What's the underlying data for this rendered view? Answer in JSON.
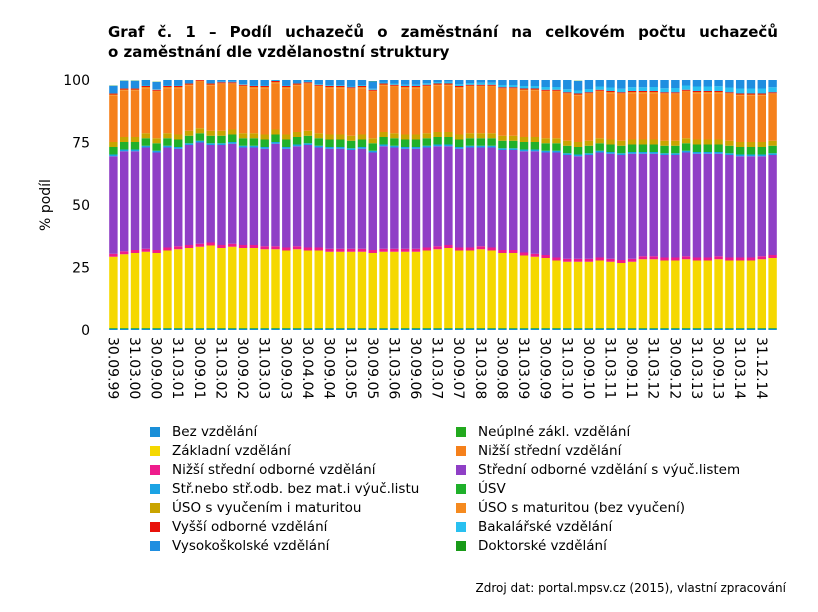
{
  "title_line1": "Graf č. 1 – Podíl uchazečů o zaměstnání na celkovém počtu uchazečů",
  "title_line2": "o zaměstnání dle vzdělanostní struktury",
  "source": "Zdroj dat: portal.mpsv.cz (2015), vlastní zpracování",
  "chart_data": {
    "type": "bar",
    "stacked": true,
    "ylabel": "% podíl",
    "ylim": [
      0,
      100
    ],
    "yticks": [
      0,
      25,
      50,
      75,
      100
    ],
    "x_tick_labels": [
      "30.09.99",
      "31.03.00",
      "30.09.00",
      "31.03.01",
      "30.09.01",
      "31.03.02",
      "30.09.02",
      "31.03.03",
      "30.09.03",
      "30.04.04",
      "30.09.04",
      "31.03.05",
      "30.09.05",
      "31.03.06",
      "30.09.06",
      "31.03.07",
      "30.09.07",
      "31.03.08",
      "30.09.08",
      "31.03.09",
      "30.09.09",
      "31.03.10",
      "30.09.10",
      "31.03.11",
      "30.09.11",
      "31.03.12",
      "30.09.12",
      "31.03.13",
      "30.09.13",
      "31.03.14",
      "31.12.14"
    ],
    "bar_count": 62,
    "series": [
      {
        "name": "Bez vzdělání",
        "color": "#1a8fd8",
        "values": [
          0.5,
          0.5,
          0.5,
          0.5,
          0.5,
          0.5,
          0.5,
          0.5,
          0.5,
          0.5,
          0.5,
          0.5,
          0.5,
          0.5,
          0.5,
          0.5,
          0.5,
          0.5,
          0.5,
          0.5,
          0.5,
          0.5,
          0.5,
          0.5,
          0.5,
          0.5,
          0.5,
          0.5,
          0.5,
          0.5,
          0.5,
          0.5,
          0.5,
          0.5,
          0.5,
          0.5,
          0.5,
          0.5,
          0.5,
          0.5,
          0.5,
          0.5,
          0.5,
          0.5,
          0.5,
          0.5,
          0.5,
          0.5,
          0.5,
          0.5,
          0.5,
          0.5,
          0.5,
          0.5,
          0.5,
          0.5,
          0.5,
          0.5,
          0.5,
          0.5,
          0.5,
          0.5
        ]
      },
      {
        "name": "Neúplné zákl. vzdělání",
        "color": "#22a91e",
        "values": [
          0.3,
          0.3,
          0.3,
          0.3,
          0.3,
          0.3,
          0.3,
          0.3,
          0.3,
          0.3,
          0.3,
          0.3,
          0.3,
          0.3,
          0.3,
          0.3,
          0.3,
          0.3,
          0.3,
          0.3,
          0.3,
          0.3,
          0.3,
          0.3,
          0.3,
          0.3,
          0.3,
          0.3,
          0.3,
          0.3,
          0.3,
          0.3,
          0.3,
          0.3,
          0.3,
          0.3,
          0.3,
          0.3,
          0.3,
          0.3,
          0.3,
          0.3,
          0.3,
          0.3,
          0.3,
          0.3,
          0.3,
          0.3,
          0.3,
          0.3,
          0.3,
          0.3,
          0.3,
          0.3,
          0.3,
          0.3,
          0.3,
          0.3,
          0.3,
          0.3,
          0.3,
          0.3
        ]
      },
      {
        "name": "Základní vzdělání",
        "color": "#f5d800",
        "values": [
          28.5,
          29.5,
          30.0,
          30.5,
          30.0,
          31.0,
          31.5,
          32.0,
          32.5,
          33.0,
          32.0,
          32.5,
          32.0,
          32.0,
          31.5,
          31.5,
          31.0,
          31.5,
          31.0,
          31.0,
          30.5,
          30.5,
          30.5,
          30.5,
          30.0,
          30.5,
          30.5,
          30.5,
          30.5,
          31.0,
          31.5,
          32.0,
          31.0,
          31.0,
          31.5,
          31.0,
          30.0,
          30.0,
          29.0,
          28.5,
          28.0,
          27.0,
          26.5,
          26.5,
          26.5,
          27.0,
          26.5,
          26.0,
          26.5,
          27.5,
          27.5,
          27.0,
          27.0,
          27.5,
          27.0,
          27.0,
          27.5,
          27.0,
          27.0,
          27.0,
          27.5,
          28.0
        ]
      },
      {
        "name": "Nižší střední vzdělání",
        "color": "#f5801b",
        "values": [
          18.5,
          18.5,
          18.5,
          18.0,
          18.5,
          18.0,
          18.5,
          18.0,
          18.5,
          18.0,
          18.5,
          18.0,
          18.5,
          18.0,
          18.5,
          18.5,
          18.5,
          18.5,
          18.5,
          18.5,
          18.5,
          18.5,
          18.5,
          18.5,
          18.5,
          18.5,
          18.5,
          18.5,
          18.5,
          18.5,
          18.5,
          18.5,
          18.5,
          18.5,
          18.5,
          18.5,
          18.5,
          18.5,
          18.5,
          18.5,
          18.5,
          18.5,
          18.5,
          18.5,
          18.5,
          18.5,
          18.5,
          18.5,
          18.5,
          18.5,
          18.5,
          18.5,
          18.5,
          18.5,
          18.5,
          18.5,
          18.5,
          18.5,
          18.5,
          18.5,
          18.5,
          18.5
        ]
      },
      {
        "name": "Nižší střední odborné vzdělání",
        "color": "#ee1c8c",
        "values": [
          1.2,
          1.2,
          1.2,
          1.2,
          1.2,
          1.2,
          1.2,
          1.2,
          1.2,
          1.2,
          1.2,
          1.2,
          1.2,
          1.2,
          1.2,
          1.2,
          1.2,
          1.2,
          1.2,
          1.2,
          1.2,
          1.2,
          1.2,
          1.2,
          1.2,
          1.2,
          1.2,
          1.2,
          1.2,
          1.2,
          1.2,
          1.2,
          1.2,
          1.2,
          1.2,
          1.2,
          1.2,
          1.2,
          1.2,
          1.2,
          1.2,
          1.2,
          1.2,
          1.2,
          1.2,
          1.2,
          1.2,
          1.2,
          1.2,
          1.2,
          1.2,
          1.2,
          1.2,
          1.2,
          1.2,
          1.2,
          1.2,
          1.2,
          1.2,
          1.2,
          1.2,
          1.2
        ]
      },
      {
        "name": "Střední odborné vzdělání s výuč.listem",
        "color": "#8f3fc6",
        "values": [
          39.0,
          40.0,
          39.5,
          40.5,
          39.0,
          40.0,
          39.0,
          40.0,
          40.5,
          39.0,
          40.0,
          40.0,
          39.0,
          39.0,
          39.0,
          41.0,
          39.5,
          40.0,
          41.0,
          40.0,
          40.0,
          40.0,
          39.5,
          40.0,
          39.0,
          41.0,
          40.5,
          40.0,
          40.0,
          40.0,
          40.0,
          39.5,
          39.5,
          40.0,
          39.5,
          40.0,
          40.0,
          40.0,
          40.5,
          41.0,
          41.0,
          42.0,
          41.5,
          41.0,
          41.5,
          42.0,
          42.0,
          42.0,
          42.0,
          41.0,
          41.0,
          41.0,
          41.0,
          41.5,
          41.5,
          41.5,
          41.0,
          41.0,
          40.5,
          40.5,
          40.0,
          40.0
        ]
      },
      {
        "name": "Stř.nebo stř.odb. bez mat.i výuč.listu",
        "color": "#1ba3e4",
        "values": [
          0.7,
          0.7,
          0.7,
          0.7,
          0.7,
          0.7,
          0.7,
          0.7,
          0.7,
          0.7,
          0.7,
          0.7,
          0.7,
          0.7,
          0.7,
          0.7,
          0.7,
          0.7,
          0.7,
          0.7,
          0.7,
          0.7,
          0.7,
          0.7,
          0.7,
          0.7,
          0.7,
          0.7,
          0.7,
          0.7,
          0.7,
          0.7,
          0.7,
          0.7,
          0.7,
          0.7,
          0.7,
          0.7,
          0.7,
          0.7,
          0.7,
          0.7,
          0.7,
          0.7,
          0.7,
          0.7,
          0.7,
          0.7,
          0.7,
          0.7,
          0.7,
          0.7,
          0.7,
          0.7,
          0.7,
          0.7,
          0.7,
          0.7,
          0.7,
          0.7,
          0.7,
          0.7
        ]
      },
      {
        "name": "ÚSV",
        "color": "#1fb02a",
        "values": [
          3.0,
          3.0,
          3.0,
          3.0,
          3.0,
          3.0,
          3.0,
          3.0,
          3.0,
          3.0,
          3.0,
          3.0,
          3.0,
          3.0,
          3.0,
          3.0,
          3.0,
          3.0,
          3.0,
          3.0,
          3.0,
          3.0,
          3.0,
          3.0,
          3.0,
          3.0,
          3.0,
          3.0,
          3.0,
          3.0,
          3.0,
          3.0,
          3.0,
          3.0,
          3.0,
          3.0,
          3.0,
          3.0,
          3.0,
          3.0,
          3.0,
          3.0,
          3.0,
          3.0,
          3.0,
          3.0,
          3.0,
          3.0,
          3.0,
          3.0,
          3.0,
          3.0,
          3.0,
          3.0,
          3.0,
          3.0,
          3.0,
          3.0,
          3.0,
          3.0,
          3.0,
          3.0
        ]
      },
      {
        "name": "ÚSO s vyučením i maturitou",
        "color": "#c9a400",
        "values": [
          2.0,
          2.0,
          2.0,
          2.0,
          2.0,
          2.0,
          2.0,
          2.0,
          2.0,
          2.0,
          2.0,
          2.0,
          2.0,
          2.0,
          2.0,
          2.0,
          2.0,
          2.0,
          2.0,
          2.0,
          2.0,
          2.0,
          2.0,
          2.0,
          2.0,
          2.0,
          2.0,
          2.0,
          2.0,
          2.0,
          2.0,
          2.0,
          2.0,
          2.0,
          2.0,
          2.0,
          2.0,
          2.0,
          2.0,
          2.0,
          2.0,
          2.0,
          2.0,
          2.0,
          2.0,
          2.0,
          2.0,
          2.0,
          2.0,
          2.0,
          2.0,
          2.0,
          2.0,
          2.0,
          2.0,
          2.0,
          2.0,
          2.0,
          2.0,
          2.0,
          2.0,
          2.0
        ]
      },
      {
        "name": "ÚSO s maturitou (bez vyučení)",
        "color": "#f58a1f",
        "values": [
          0.5,
          0.5,
          0.5,
          0.5,
          0.5,
          0.5,
          0.5,
          0.5,
          0.5,
          0.5,
          0.5,
          0.5,
          0.5,
          0.5,
          0.5,
          0.5,
          0.5,
          0.5,
          0.5,
          0.5,
          0.5,
          0.5,
          0.5,
          0.5,
          0.5,
          0.5,
          0.5,
          0.5,
          0.5,
          0.5,
          0.5,
          0.5,
          0.5,
          0.5,
          0.5,
          0.5,
          0.5,
          0.5,
          0.5,
          0.5,
          0.5,
          0.5,
          0.5,
          0.5,
          0.5,
          0.5,
          0.5,
          0.5,
          0.5,
          0.5,
          0.5,
          0.5,
          0.5,
          0.5,
          0.5,
          0.5,
          0.5,
          0.5,
          0.5,
          0.5,
          0.5,
          0.5
        ]
      },
      {
        "name": "Vyšší odborné vzdělání",
        "color": "#e8110a",
        "values": [
          0.4,
          0.4,
          0.4,
          0.4,
          0.4,
          0.4,
          0.4,
          0.4,
          0.4,
          0.4,
          0.4,
          0.4,
          0.4,
          0.4,
          0.4,
          0.4,
          0.4,
          0.4,
          0.4,
          0.4,
          0.4,
          0.4,
          0.4,
          0.4,
          0.4,
          0.4,
          0.4,
          0.4,
          0.4,
          0.4,
          0.4,
          0.4,
          0.4,
          0.4,
          0.4,
          0.4,
          0.4,
          0.4,
          0.4,
          0.4,
          0.4,
          0.4,
          0.4,
          0.4,
          0.4,
          0.4,
          0.4,
          0.4,
          0.4,
          0.4,
          0.4,
          0.4,
          0.4,
          0.4,
          0.4,
          0.4,
          0.4,
          0.4,
          0.4,
          0.4,
          0.4,
          0.4
        ]
      },
      {
        "name": "Bakalářské vzdělání",
        "color": "#29c0f0",
        "values": [
          0.2,
          0.2,
          0.2,
          0.2,
          0.2,
          0.2,
          0.2,
          0.2,
          0.2,
          0.2,
          0.2,
          0.2,
          0.2,
          0.2,
          0.2,
          0.2,
          0.2,
          0.2,
          0.3,
          0.3,
          0.3,
          0.3,
          0.3,
          0.4,
          0.4,
          0.4,
          0.5,
          0.5,
          0.5,
          0.6,
          0.6,
          0.7,
          0.7,
          0.7,
          0.8,
          0.8,
          0.9,
          0.9,
          1.0,
          1.0,
          1.1,
          1.1,
          1.2,
          1.2,
          1.3,
          1.3,
          1.4,
          1.4,
          1.5,
          1.5,
          1.6,
          1.6,
          1.7,
          1.7,
          1.8,
          1.8,
          1.9,
          1.9,
          2.0,
          2.0,
          2.0,
          2.0
        ]
      },
      {
        "name": "Vysokoškolské vzdělání",
        "color": "#1f8ee0",
        "values": [
          2.9,
          2.9,
          2.9,
          2.9,
          2.9,
          2.9,
          2.9,
          2.9,
          2.9,
          2.9,
          2.9,
          2.9,
          2.9,
          2.9,
          2.9,
          2.9,
          2.9,
          2.9,
          2.9,
          2.9,
          2.9,
          2.9,
          3.0,
          3.0,
          3.0,
          3.0,
          3.0,
          3.0,
          3.1,
          3.1,
          3.2,
          3.2,
          3.2,
          3.3,
          3.3,
          3.4,
          3.4,
          3.5,
          3.5,
          3.6,
          3.6,
          3.7,
          3.7,
          3.8,
          3.8,
          3.9,
          3.9,
          4.0,
          4.0,
          4.0,
          4.1,
          4.1,
          4.2,
          4.2,
          4.3,
          4.3,
          4.4,
          4.4,
          4.5,
          4.5,
          4.6,
          4.6
        ]
      },
      {
        "name": "Doktorské vzdělání",
        "color": "#189a18",
        "values": [
          0.1,
          0.1,
          0.1,
          0.1,
          0.1,
          0.1,
          0.1,
          0.1,
          0.1,
          0.1,
          0.1,
          0.1,
          0.1,
          0.1,
          0.1,
          0.1,
          0.1,
          0.1,
          0.1,
          0.1,
          0.1,
          0.1,
          0.1,
          0.1,
          0.1,
          0.1,
          0.1,
          0.1,
          0.1,
          0.1,
          0.1,
          0.1,
          0.1,
          0.1,
          0.1,
          0.1,
          0.1,
          0.1,
          0.1,
          0.1,
          0.1,
          0.1,
          0.1,
          0.1,
          0.1,
          0.1,
          0.1,
          0.1,
          0.1,
          0.1,
          0.1,
          0.1,
          0.1,
          0.1,
          0.1,
          0.1,
          0.1,
          0.1,
          0.1,
          0.1,
          0.1,
          0.1
        ]
      }
    ],
    "stack_order": [
      "Bez vzdělání",
      "Neúplné zákl. vzdělání",
      "Základní vzdělání",
      "Nižší střední odborné vzdělání",
      "Střední odborné vzdělání s výuč.listem",
      "Stř.nebo stř.odb. bez mat.i výuč.listu",
      "ÚSV",
      "ÚSO s vyučením i maturitou",
      "Nižší střední vzdělání",
      "ÚSO s maturitou (bez vyučení)",
      "Vyšší odborné vzdělání",
      "Bakalářské vzdělání",
      "Vysokoškolské vzdělání",
      "Doktorské vzdělání"
    ],
    "legend": [
      {
        "label": "Bez vzdělání",
        "color": "#1a8fd8"
      },
      {
        "label": "Neúplné zákl. vzdělání",
        "color": "#22a91e"
      },
      {
        "label": "Základní vzdělání",
        "color": "#f5d800"
      },
      {
        "label": "Nižší střední vzdělání",
        "color": "#f5801b"
      },
      {
        "label": "Nižší střední odborné vzdělání",
        "color": "#ee1c8c"
      },
      {
        "label": "Střední odborné vzdělání s výuč.listem",
        "color": "#8f3fc6"
      },
      {
        "label": "Stř.nebo stř.odb. bez mat.i výuč.listu",
        "color": "#1ba3e4"
      },
      {
        "label": "ÚSV",
        "color": "#1fb02a"
      },
      {
        "label": "ÚSO s vyučením i maturitou",
        "color": "#c9a400"
      },
      {
        "label": "ÚSO s maturitou (bez vyučení)",
        "color": "#f58a1f"
      },
      {
        "label": "Vyšší odborné vzdělání",
        "color": "#e8110a"
      },
      {
        "label": "Bakalářské vzdělání",
        "color": "#29c0f0"
      },
      {
        "label": "Vysokoškolské vzdělání",
        "color": "#1f8ee0"
      },
      {
        "label": "Doktorské vzdělání",
        "color": "#189a18"
      }
    ]
  }
}
